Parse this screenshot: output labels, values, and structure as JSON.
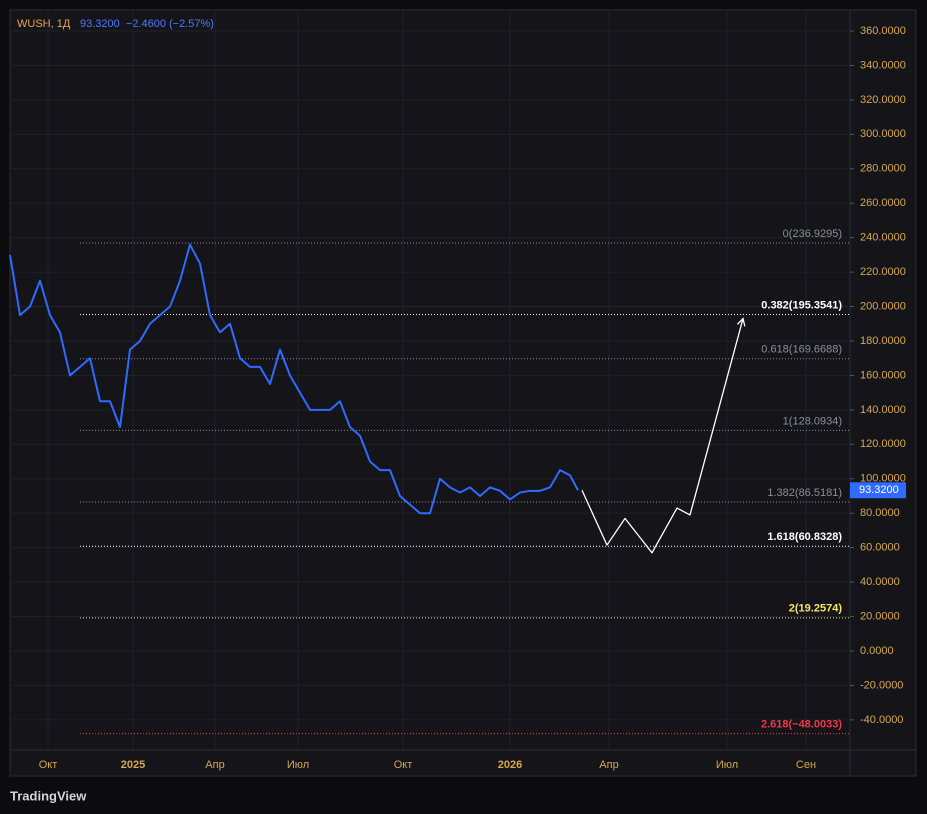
{
  "chart_data": {
    "type": "line",
    "symbol": "WUSH, 1Д",
    "quote": "93.3200  −2.4600 (−2.57%)",
    "last_price_label": "93.3200",
    "watermark": "TradingView",
    "grid": true,
    "xlim": [
      0,
      84
    ],
    "ylim": [
      -57.5,
      372.2
    ],
    "xticks": [
      {
        "value": 3.8,
        "label": "Окт"
      },
      {
        "value": 12.3,
        "label": "2025"
      },
      {
        "value": 20.5,
        "label": "Апр"
      },
      {
        "value": 28.8,
        "label": "Июл"
      },
      {
        "value": 39.3,
        "label": "Окт"
      },
      {
        "value": 50,
        "label": "2026"
      },
      {
        "value": 59.9,
        "label": "Апр"
      },
      {
        "value": 71.7,
        "label": "Июл"
      },
      {
        "value": 79.6,
        "label": "Сен"
      }
    ],
    "yticks": [
      {
        "value": -40,
        "label": "-40.0000"
      },
      {
        "value": -20,
        "label": "-20.0000"
      },
      {
        "value": 0,
        "label": "0.0000"
      },
      {
        "value": 20,
        "label": "20.0000"
      },
      {
        "value": 40,
        "label": "40.0000"
      },
      {
        "value": 60,
        "label": "60.0000"
      },
      {
        "value": 80,
        "label": "80.0000"
      },
      {
        "value": 100,
        "label": "100.0000"
      },
      {
        "value": 120,
        "label": "120.0000"
      },
      {
        "value": 140,
        "label": "140.0000"
      },
      {
        "value": 160,
        "label": "160.0000"
      },
      {
        "value": 180,
        "label": "180.0000"
      },
      {
        "value": 200,
        "label": "200.0000"
      },
      {
        "value": 220,
        "label": "220.0000"
      },
      {
        "value": 240,
        "label": "240.0000"
      },
      {
        "value": 260,
        "label": "260.0000"
      },
      {
        "value": 280,
        "label": "280.0000"
      },
      {
        "value": 300,
        "label": "300.0000"
      },
      {
        "value": 320,
        "label": "320.0000"
      },
      {
        "value": 340,
        "label": "340.0000"
      },
      {
        "value": 360,
        "label": "360.0000"
      }
    ],
    "series": [
      {
        "color": "#2f6bff",
        "x": [
          0,
          1,
          2,
          3,
          4,
          5,
          6,
          7,
          8,
          9,
          10,
          11,
          12,
          13,
          14,
          15,
          16,
          17,
          18,
          19,
          20,
          21,
          22,
          23,
          24,
          25,
          26,
          27,
          28,
          29,
          30,
          31,
          32,
          33,
          34,
          35,
          36,
          37,
          38,
          39,
          40,
          41,
          42,
          43,
          44,
          45,
          46,
          47,
          48,
          49,
          50,
          51,
          52,
          53,
          54,
          55,
          56,
          56.8
        ],
        "values": [
          230,
          195,
          200,
          215,
          195,
          185,
          160,
          165,
          170,
          145,
          145,
          130,
          175,
          180,
          190,
          195,
          200,
          215,
          236,
          225,
          195,
          185,
          190,
          170,
          165,
          165,
          155,
          175,
          160,
          150,
          140,
          140,
          140,
          145,
          130,
          125,
          110,
          105,
          105,
          90,
          85,
          80,
          80,
          100,
          95,
          92,
          95,
          90,
          95,
          93,
          88,
          92,
          93,
          93,
          95,
          105,
          102,
          93.32
        ]
      },
      {
        "color": "#ffffff",
        "x": [
          57.2,
          59.7,
          61.5,
          64.2,
          66.7,
          68,
          73.3
        ],
        "values": [
          93.32,
          61.5,
          77,
          57,
          83,
          79,
          193
        ]
      }
    ],
    "levels": [
      {
        "label": "0(236.9295)",
        "value": 236.9295,
        "color": "#8a8e99"
      },
      {
        "label": "0.382(195.3541)",
        "value": 195.3541,
        "color": "#ffffff"
      },
      {
        "label": "0.618(169.6688)",
        "value": 169.6688,
        "color": "#8a8e99"
      },
      {
        "label": "1(128.0934)",
        "value": 128.0934,
        "color": "#8a8e99"
      },
      {
        "label": "1.382(86.5181)",
        "value": 86.5181,
        "color": "#8a8e99"
      },
      {
        "label": "1.618(60.8328)",
        "value": 60.8328,
        "color": "#ffffff"
      },
      {
        "label": "2(19.2574)",
        "value": 19.2574,
        "color": "#f5e663"
      },
      {
        "label": "2.618(−48.0033)",
        "value": -48.0033,
        "color": "#f23645"
      }
    ]
  }
}
